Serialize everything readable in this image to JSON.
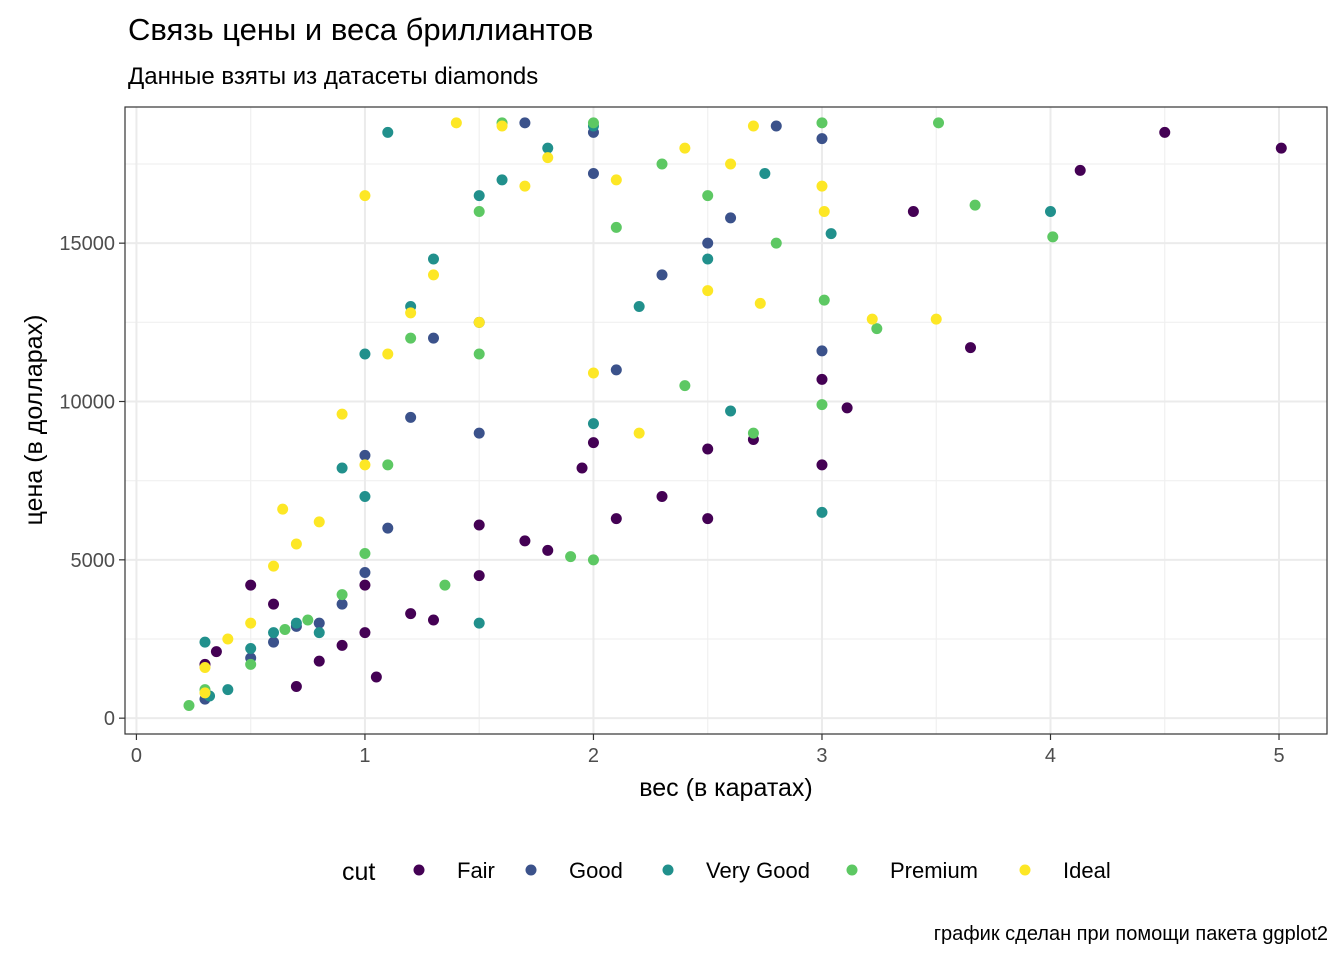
{
  "chart_data": {
    "type": "scatter",
    "title": "Связь цены и веса бриллиантов",
    "subtitle": "Данные взяты из датасеты diamonds",
    "xlabel": "вес (в каратах)",
    "ylabel": "цена (в долларах)",
    "caption": "график сделан при помощи пакета ggplot2",
    "xlim": [
      -0.05,
      5.21
    ],
    "ylim": [
      -500,
      19300
    ],
    "x_ticks": [
      0,
      1,
      2,
      3,
      4,
      5
    ],
    "x_tick_labels": [
      "0",
      "1",
      "2",
      "3",
      "4",
      "5"
    ],
    "y_ticks": [
      0,
      5000,
      10000,
      15000
    ],
    "y_tick_labels": [
      "0",
      "5000",
      "10000",
      "15000"
    ],
    "grid": true,
    "legend": {
      "title": "cut",
      "position": "bottom",
      "entries": [
        "Fair",
        "Good",
        "Very Good",
        "Premium",
        "Ideal"
      ],
      "colors": [
        "#440154",
        "#3B528B",
        "#21908C",
        "#5DC863",
        "#FDE725"
      ]
    },
    "series": [
      {
        "name": "Fair",
        "color": "#440154",
        "x": [
          0.3,
          0.35,
          0.5,
          0.6,
          0.7,
          0.8,
          0.9,
          1.0,
          1.0,
          1.05,
          1.2,
          1.3,
          1.5,
          1.5,
          1.7,
          1.8,
          1.95,
          2.0,
          2.1,
          2.3,
          2.5,
          2.5,
          2.7,
          3.0,
          3.0,
          3.11,
          3.4,
          3.65,
          4.13,
          4.5,
          5.01
        ],
        "y": [
          1700,
          2100,
          4200,
          3600,
          1000,
          1800,
          2300,
          2700,
          4200,
          1300,
          3300,
          3100,
          4500,
          6100,
          5600,
          5300,
          7900,
          8700,
          6300,
          7000,
          6300,
          8500,
          8800,
          8000,
          10700,
          9800,
          16000,
          11700,
          17300,
          18500,
          18000
        ]
      },
      {
        "name": "Good",
        "color": "#3B528B",
        "x": [
          0.3,
          0.5,
          0.6,
          0.7,
          0.8,
          0.9,
          1.0,
          1.0,
          1.1,
          1.2,
          1.3,
          1.5,
          1.5,
          1.7,
          2.0,
          2.0,
          2.1,
          2.3,
          2.5,
          2.6,
          2.8,
          3.0,
          3.0
        ],
        "y": [
          600,
          1900,
          2400,
          2900,
          3000,
          3600,
          4600,
          8300,
          6000,
          9500,
          12000,
          9000,
          12500,
          18800,
          17200,
          18500,
          11000,
          14000,
          15000,
          15800,
          18700,
          11600,
          18300
        ]
      },
      {
        "name": "Very Good",
        "color": "#21908C",
        "x": [
          0.3,
          0.32,
          0.4,
          0.5,
          0.6,
          0.7,
          0.8,
          0.9,
          1.0,
          1.0,
          1.1,
          1.2,
          1.3,
          1.5,
          1.5,
          1.6,
          1.8,
          2.0,
          2.0,
          2.2,
          2.5,
          2.6,
          2.75,
          3.0,
          3.04,
          4.0
        ],
        "y": [
          2400,
          700,
          900,
          2200,
          2700,
          3000,
          2700,
          7900,
          7000,
          11500,
          18500,
          13000,
          14500,
          3000,
          16500,
          17000,
          18000,
          9300,
          18700,
          13000,
          14500,
          9700,
          17200,
          6500,
          15300,
          16000
        ]
      },
      {
        "name": "Premium",
        "color": "#5DC863",
        "x": [
          0.23,
          0.3,
          0.5,
          0.65,
          0.75,
          0.9,
          1.0,
          1.1,
          1.2,
          1.35,
          1.5,
          1.5,
          1.6,
          1.9,
          2.0,
          2.0,
          2.1,
          2.3,
          2.4,
          2.5,
          2.7,
          2.8,
          3.0,
          3.0,
          3.01,
          3.24,
          3.51,
          3.67,
          4.01
        ],
        "y": [
          400,
          900,
          1700,
          2800,
          3100,
          3900,
          5200,
          8000,
          12000,
          4200,
          11500,
          16000,
          18800,
          5100,
          5000,
          18800,
          15500,
          17500,
          10500,
          16500,
          9000,
          15000,
          18800,
          9900,
          13200,
          12300,
          18800,
          16200,
          15200
        ]
      },
      {
        "name": "Ideal",
        "color": "#FDE725",
        "x": [
          0.3,
          0.3,
          0.4,
          0.5,
          0.6,
          0.64,
          0.7,
          0.8,
          0.9,
          1.0,
          1.0,
          1.1,
          1.2,
          1.3,
          1.4,
          1.5,
          1.6,
          1.7,
          1.8,
          2.0,
          2.1,
          2.2,
          2.4,
          2.5,
          2.6,
          2.7,
          2.73,
          3.0,
          3.01,
          3.22,
          3.5
        ],
        "y": [
          800,
          1600,
          2500,
          3000,
          4800,
          6600,
          5500,
          6200,
          9600,
          8000,
          16500,
          11500,
          12800,
          14000,
          18800,
          12500,
          18700,
          16800,
          17700,
          10900,
          17000,
          9000,
          18000,
          13500,
          17500,
          18700,
          13100,
          16800,
          16000,
          12600,
          12600
        ]
      }
    ]
  }
}
